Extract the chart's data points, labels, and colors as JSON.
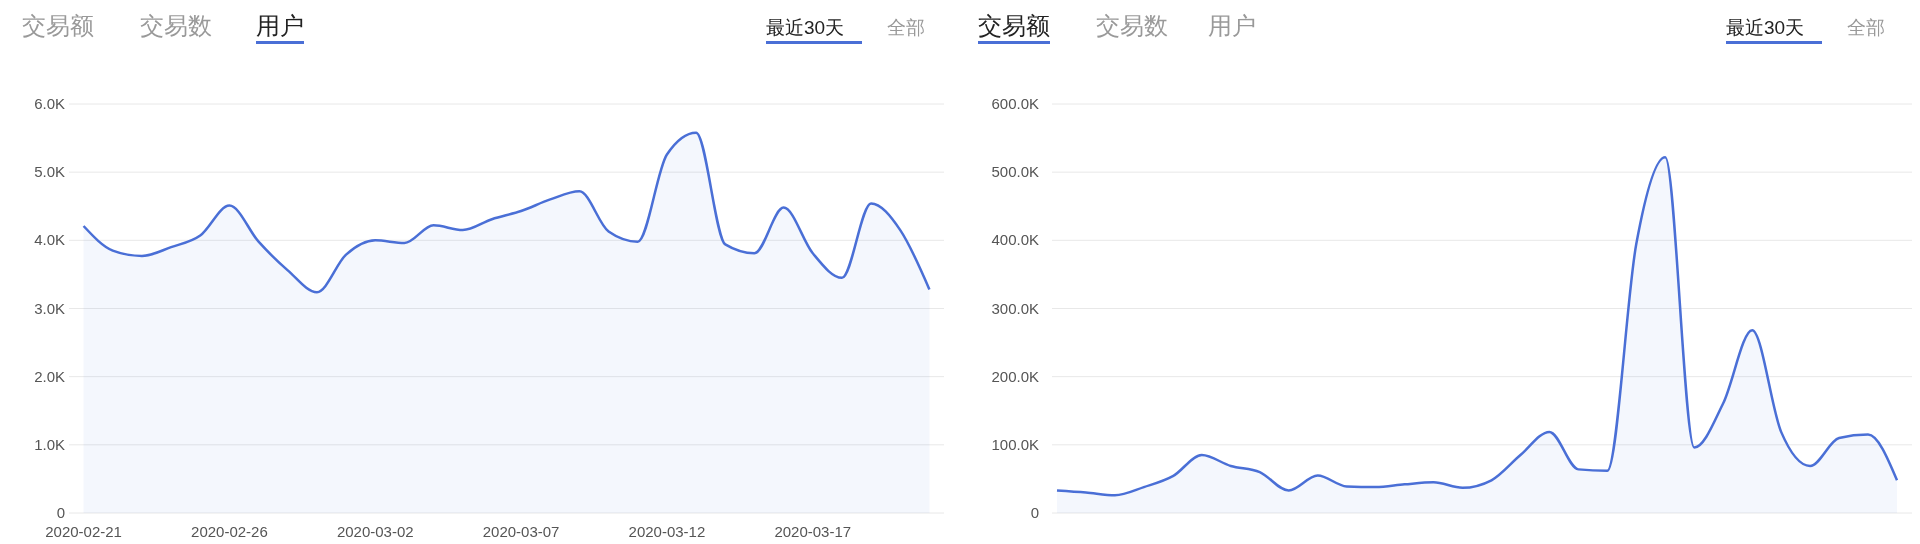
{
  "chart_data": [
    {
      "type": "area",
      "annotations": [
        "交易额",
        "交易数",
        "用户",
        "最近30天",
        "全部"
      ],
      "x": [
        "2020-02-21",
        "2020-02-22",
        "2020-02-23",
        "2020-02-24",
        "2020-02-25",
        "2020-02-26",
        "2020-02-27",
        "2020-02-28",
        "2020-02-29",
        "2020-03-01",
        "2020-03-02",
        "2020-03-03",
        "2020-03-04",
        "2020-03-05",
        "2020-03-06",
        "2020-03-07",
        "2020-03-08",
        "2020-03-09",
        "2020-03-10",
        "2020-03-11",
        "2020-03-12",
        "2020-03-13",
        "2020-03-14",
        "2020-03-15",
        "2020-03-16",
        "2020-03-17",
        "2020-03-18",
        "2020-03-19",
        "2020-03-20",
        "2020-03-21"
      ],
      "values": [
        4210,
        3850,
        3770,
        3900,
        4070,
        4510,
        3980,
        3560,
        3240,
        3790,
        4000,
        3960,
        4220,
        4150,
        4310,
        4430,
        4600,
        4720,
        4130,
        3980,
        5260,
        5580,
        3940,
        3810,
        4480,
        3810,
        3450,
        4540,
        4150,
        3280
      ],
      "color": "#4a6fd6",
      "xlim": [
        "2020-02-20T12:00",
        "2020-03-21T12:00"
      ],
      "xticks": [
        "2020-02-21",
        "2020-02-26",
        "2020-03-02",
        "2020-03-07",
        "2020-03-12",
        "2020-03-17"
      ],
      "ylim": [
        0,
        6000
      ],
      "yticks": [
        {
          "value": 0,
          "label": "0"
        },
        {
          "value": 1000,
          "label": "1.0K"
        },
        {
          "value": 2000,
          "label": "2.0K"
        },
        {
          "value": 3000,
          "label": "3.0K"
        },
        {
          "value": 4000,
          "label": "4.0K"
        },
        {
          "value": 5000,
          "label": "5.0K"
        },
        {
          "value": 6000,
          "label": "6.0K"
        }
      ],
      "grid": "y"
    },
    {
      "type": "area",
      "annotations": [
        "交易额",
        "交易数",
        "用户",
        "最近30天",
        "全部"
      ],
      "categories": [
        null,
        null,
        null,
        null,
        null,
        null,
        null,
        null,
        null,
        null,
        null,
        null,
        null,
        null,
        null,
        null,
        null,
        null,
        null,
        null,
        null,
        null,
        null,
        null,
        null,
        null,
        null,
        null,
        null,
        null
      ],
      "values": [
        33000,
        30000,
        26000,
        38000,
        54000,
        85000,
        69000,
        60000,
        33000,
        55000,
        39000,
        38000,
        42000,
        45000,
        37000,
        48000,
        85000,
        119000,
        64000,
        62000,
        395000,
        522000,
        96000,
        161000,
        268000,
        119000,
        69000,
        110000,
        115000,
        48000
      ],
      "color": "#4a6fd6",
      "ylim": [
        0,
        600000
      ],
      "yticks": [
        {
          "value": 0,
          "label": "0"
        },
        {
          "value": 100000,
          "label": "100.0K"
        },
        {
          "value": 200000,
          "label": "200.0K"
        },
        {
          "value": 300000,
          "label": "300.0K"
        },
        {
          "value": 400000,
          "label": "400.0K"
        },
        {
          "value": 500000,
          "label": "500.0K"
        },
        {
          "value": 600000,
          "label": "600.0K"
        }
      ],
      "grid": "y"
    }
  ]
}
